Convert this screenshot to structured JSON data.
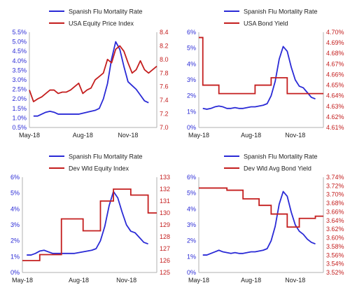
{
  "colors": {
    "blue": "#2a2ad6",
    "red": "#c41e1e",
    "axis": "#b0b0b0"
  },
  "chart_data": [
    {
      "type": "line",
      "legend": [
        "Spanish Flu Mortality Rate",
        "USA Equity Price Index"
      ],
      "x_ticks": [
        "May-18",
        "Aug-18",
        "Nov-18"
      ],
      "x_range": [
        0,
        31
      ],
      "left_axis": {
        "range": [
          0.5,
          5.5
        ],
        "ticks": [
          "0.5%",
          "1.0%",
          "1.5%",
          "2.0%",
          "2.5%",
          "3.0%",
          "3.5%",
          "4.0%",
          "4.5%",
          "5.0%",
          "5.5%"
        ],
        "tick_values": [
          0.5,
          1,
          1.5,
          2,
          2.5,
          3,
          3.5,
          4,
          4.5,
          5,
          5.5
        ]
      },
      "right_axis": {
        "range": [
          7.0,
          8.4
        ],
        "ticks": [
          "7.0",
          "7.2",
          "7.4",
          "7.6",
          "7.8",
          "8.0",
          "8.2",
          "8.4"
        ],
        "tick_values": [
          7.0,
          7.2,
          7.4,
          7.6,
          7.8,
          8.0,
          8.2,
          8.4
        ]
      },
      "series": [
        {
          "name": "Spanish Flu Mortality Rate",
          "axis": "left",
          "step": false,
          "x": [
            1,
            2,
            3,
            4,
            5,
            6,
            7,
            8,
            9,
            10,
            11,
            12,
            13,
            14,
            15,
            16,
            17,
            18,
            19,
            20,
            21,
            22,
            23,
            24,
            25,
            26,
            27,
            28,
            29
          ],
          "y": [
            1.1,
            1.1,
            1.2,
            1.3,
            1.35,
            1.3,
            1.2,
            1.2,
            1.2,
            1.2,
            1.2,
            1.2,
            1.25,
            1.3,
            1.35,
            1.4,
            1.5,
            2.0,
            2.8,
            4.1,
            5.0,
            4.6,
            3.7,
            2.9,
            2.7,
            2.5,
            2.2,
            1.9,
            1.8
          ]
        },
        {
          "name": "USA Equity Price Index",
          "axis": "right",
          "step": false,
          "x": [
            0,
            1,
            2,
            3,
            4,
            5,
            6,
            7,
            8,
            9,
            10,
            11,
            12,
            13,
            14,
            15,
            16,
            17,
            18,
            19,
            20,
            21,
            22,
            23,
            24,
            25,
            26,
            27,
            28,
            29,
            30,
            31
          ],
          "y": [
            7.55,
            7.38,
            7.42,
            7.45,
            7.5,
            7.55,
            7.55,
            7.5,
            7.52,
            7.52,
            7.55,
            7.6,
            7.65,
            7.5,
            7.55,
            7.58,
            7.7,
            7.75,
            7.8,
            8.0,
            7.95,
            8.15,
            8.2,
            8.12,
            7.95,
            7.8,
            7.85,
            7.98,
            7.85,
            7.8,
            7.85,
            7.9
          ]
        }
      ]
    },
    {
      "type": "line",
      "legend": [
        "Spanish Flu Mortality Rate",
        "USA Bond Yield"
      ],
      "x_ticks": [
        "May-18",
        "Aug-18",
        "Nov-18"
      ],
      "x_range": [
        0,
        31
      ],
      "left_axis": {
        "range": [
          0,
          6
        ],
        "ticks": [
          "0%",
          "1%",
          "2%",
          "3%",
          "4%",
          "5%",
          "6%"
        ],
        "tick_values": [
          0,
          1,
          2,
          3,
          4,
          5,
          6
        ]
      },
      "right_axis": {
        "range": [
          4.61,
          4.7
        ],
        "ticks": [
          "4.61%",
          "4.62%",
          "4.63%",
          "4.64%",
          "4.65%",
          "4.66%",
          "4.67%",
          "4.68%",
          "4.69%",
          "4.70%"
        ],
        "tick_values": [
          4.61,
          4.62,
          4.63,
          4.64,
          4.65,
          4.66,
          4.67,
          4.68,
          4.69,
          4.7
        ]
      },
      "series": [
        {
          "name": "Spanish Flu Mortality Rate",
          "axis": "left",
          "step": false,
          "x": [
            1,
            2,
            3,
            4,
            5,
            6,
            7,
            8,
            9,
            10,
            11,
            12,
            13,
            14,
            15,
            16,
            17,
            18,
            19,
            20,
            21,
            22,
            23,
            24,
            25,
            26,
            27,
            28,
            29
          ],
          "y": [
            1.2,
            1.15,
            1.2,
            1.3,
            1.35,
            1.3,
            1.2,
            1.2,
            1.25,
            1.2,
            1.2,
            1.25,
            1.3,
            1.3,
            1.35,
            1.4,
            1.5,
            2.0,
            2.9,
            4.3,
            5.1,
            4.8,
            3.8,
            3.0,
            2.6,
            2.5,
            2.2,
            1.9,
            1.8
          ]
        },
        {
          "name": "USA Bond Yield",
          "axis": "right",
          "step": true,
          "x": [
            0,
            1,
            4,
            5,
            13,
            14,
            17,
            18,
            21,
            22,
            31
          ],
          "y": [
            4.695,
            4.65,
            4.65,
            4.642,
            4.642,
            4.65,
            4.65,
            4.657,
            4.657,
            4.642,
            4.642
          ]
        }
      ]
    },
    {
      "type": "line",
      "legend": [
        "Spanish Flu Mortality Rate",
        "Dev Wld Equity Index"
      ],
      "x_ticks": [
        "May-18",
        "Aug-18",
        "Nov-18"
      ],
      "x_range": [
        0,
        31
      ],
      "left_axis": {
        "range": [
          0,
          6
        ],
        "ticks": [
          "0%",
          "1%",
          "2%",
          "3%",
          "4%",
          "5%",
          "6%"
        ],
        "tick_values": [
          0,
          1,
          2,
          3,
          4,
          5,
          6
        ]
      },
      "right_axis": {
        "range": [
          125,
          133
        ],
        "ticks": [
          "125",
          "126",
          "127",
          "128",
          "129",
          "130",
          "131",
          "132",
          "133"
        ],
        "tick_values": [
          125,
          126,
          127,
          128,
          129,
          130,
          131,
          132,
          133
        ]
      },
      "series": [
        {
          "name": "Spanish Flu Mortality Rate",
          "axis": "left",
          "step": false,
          "x": [
            1,
            2,
            3,
            4,
            5,
            6,
            7,
            8,
            9,
            10,
            11,
            12,
            13,
            14,
            15,
            16,
            17,
            18,
            19,
            20,
            21,
            22,
            23,
            24,
            25,
            26,
            27,
            28,
            29
          ],
          "y": [
            1.1,
            1.1,
            1.2,
            1.35,
            1.4,
            1.3,
            1.2,
            1.2,
            1.2,
            1.2,
            1.2,
            1.2,
            1.25,
            1.3,
            1.35,
            1.4,
            1.5,
            2.0,
            2.9,
            4.2,
            5.1,
            4.7,
            3.8,
            3.0,
            2.6,
            2.5,
            2.2,
            1.9,
            1.8
          ]
        },
        {
          "name": "Dev Wld Equity Index",
          "axis": "right",
          "step": true,
          "x": [
            0,
            3,
            4,
            8,
            9,
            13,
            14,
            17,
            18,
            20,
            21,
            24,
            25,
            28,
            29,
            31
          ],
          "y": [
            126,
            126,
            126.5,
            126.5,
            129.5,
            129.5,
            128.5,
            128.5,
            131,
            131,
            132,
            132,
            131.5,
            131.5,
            130,
            130
          ]
        }
      ]
    },
    {
      "type": "line",
      "legend": [
        "Spanish Flu Mortality Rate",
        "Dev Wld Avg Bond Yield"
      ],
      "x_ticks": [
        "May-18",
        "Aug-18",
        "Nov-18"
      ],
      "x_range": [
        0,
        31
      ],
      "left_axis": {
        "range": [
          0,
          6
        ],
        "ticks": [
          "0%",
          "1%",
          "2%",
          "3%",
          "4%",
          "5%",
          "6%"
        ],
        "tick_values": [
          0,
          1,
          2,
          3,
          4,
          5,
          6
        ]
      },
      "right_axis": {
        "range": [
          3.52,
          3.74
        ],
        "ticks": [
          "3.52%",
          "3.54%",
          "3.56%",
          "3.58%",
          "3.60%",
          "3.62%",
          "3.64%",
          "3.66%",
          "3.68%",
          "3.70%",
          "3.72%",
          "3.74%"
        ],
        "tick_values": [
          3.52,
          3.54,
          3.56,
          3.58,
          3.6,
          3.62,
          3.64,
          3.66,
          3.68,
          3.7,
          3.72,
          3.74
        ]
      },
      "series": [
        {
          "name": "Spanish Flu Mortality Rate",
          "axis": "left",
          "step": false,
          "x": [
            1,
            2,
            3,
            4,
            5,
            6,
            7,
            8,
            9,
            10,
            11,
            12,
            13,
            14,
            15,
            16,
            17,
            18,
            19,
            20,
            21,
            22,
            23,
            24,
            25,
            26,
            27,
            28,
            29
          ],
          "y": [
            1.1,
            1.1,
            1.2,
            1.3,
            1.4,
            1.3,
            1.25,
            1.2,
            1.25,
            1.2,
            1.2,
            1.25,
            1.3,
            1.3,
            1.35,
            1.4,
            1.5,
            2.0,
            2.9,
            4.3,
            5.1,
            4.8,
            3.8,
            3.0,
            2.6,
            2.4,
            2.1,
            1.9,
            1.8
          ]
        },
        {
          "name": "Dev Wld Avg Bond Yield",
          "axis": "right",
          "step": true,
          "x": [
            0,
            6,
            7,
            10,
            11,
            14,
            15,
            17,
            18,
            21,
            22,
            24,
            25,
            28,
            29,
            31
          ],
          "y": [
            3.715,
            3.715,
            3.71,
            3.71,
            3.69,
            3.69,
            3.675,
            3.675,
            3.655,
            3.655,
            3.625,
            3.625,
            3.645,
            3.645,
            3.65,
            3.65
          ]
        }
      ]
    }
  ]
}
